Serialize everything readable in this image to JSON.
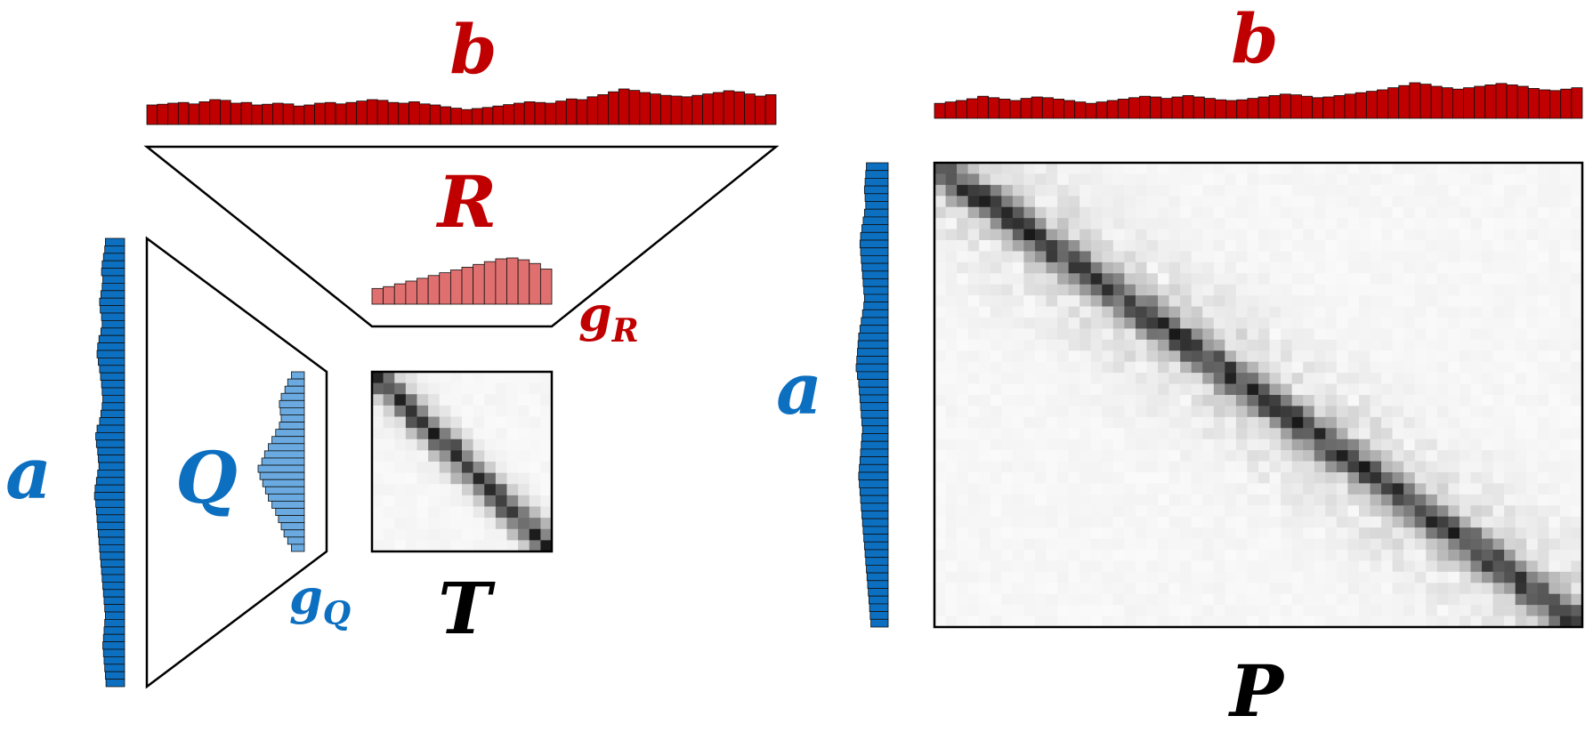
{
  "labels": {
    "a_left": "a",
    "b_top": "b",
    "R": "R",
    "gR": "g",
    "gR_sub": "R",
    "Q": "Q",
    "gQ": "g",
    "gQ_sub": "Q",
    "T": "T",
    "b_right": "b",
    "a_right": "a",
    "P": "P"
  },
  "colors": {
    "a": "#0c6fc0",
    "b": "#c00000",
    "gR": "#e07070",
    "gQ": "#6aaae0",
    "outline": "#000000",
    "matrix_dark": "#1a1a1a"
  },
  "histograms": {
    "b_left": [
      0.55,
      0.57,
      0.6,
      0.62,
      0.58,
      0.64,
      0.7,
      0.68,
      0.6,
      0.62,
      0.55,
      0.57,
      0.6,
      0.58,
      0.52,
      0.55,
      0.6,
      0.62,
      0.58,
      0.62,
      0.66,
      0.7,
      0.68,
      0.62,
      0.6,
      0.64,
      0.58,
      0.55,
      0.5,
      0.46,
      0.42,
      0.45,
      0.48,
      0.52,
      0.56,
      0.6,
      0.64,
      0.62,
      0.6,
      0.66,
      0.72,
      0.7,
      0.78,
      0.84,
      0.92,
      1.0,
      0.96,
      0.9,
      0.86,
      0.82,
      0.8,
      0.78,
      0.82,
      0.86,
      0.9,
      0.95,
      0.92,
      0.86,
      0.8,
      0.84
    ],
    "a_left": [
      0.6,
      0.62,
      0.66,
      0.7,
      0.72,
      0.68,
      0.7,
      0.74,
      0.78,
      0.76,
      0.72,
      0.7,
      0.74,
      0.8,
      0.84,
      0.86,
      0.82,
      0.78,
      0.75,
      0.72,
      0.7,
      0.68,
      0.7,
      0.74,
      0.78,
      0.86,
      0.9,
      0.88,
      0.84,
      0.82,
      0.8,
      0.84,
      0.88,
      0.92,
      0.94,
      0.9,
      0.88,
      0.86,
      0.84,
      0.82,
      0.8,
      0.78,
      0.76,
      0.74,
      0.72,
      0.7,
      0.68,
      0.66,
      0.64,
      0.62,
      0.6,
      0.62,
      0.64,
      0.66,
      0.68,
      0.66,
      0.64,
      0.62,
      0.6,
      0.58
    ],
    "gR": [
      0.34,
      0.38,
      0.44,
      0.5,
      0.56,
      0.62,
      0.68,
      0.74,
      0.8,
      0.86,
      0.92,
      0.98,
      1.0,
      0.96,
      0.88,
      0.76
    ],
    "gQ": [
      0.28,
      0.36,
      0.42,
      0.5,
      0.54,
      0.52,
      0.5,
      0.54,
      0.62,
      0.7,
      0.78,
      0.86,
      0.92,
      1.0,
      0.96,
      0.9,
      0.84,
      0.78,
      0.7,
      0.62,
      0.56,
      0.5,
      0.44,
      0.36,
      0.28
    ],
    "b_right": [
      0.42,
      0.46,
      0.5,
      0.55,
      0.62,
      0.58,
      0.54,
      0.5,
      0.56,
      0.6,
      0.58,
      0.54,
      0.5,
      0.46,
      0.42,
      0.46,
      0.5,
      0.54,
      0.58,
      0.62,
      0.6,
      0.56,
      0.6,
      0.64,
      0.6,
      0.56,
      0.52,
      0.5,
      0.52,
      0.56,
      0.6,
      0.64,
      0.68,
      0.66,
      0.62,
      0.58,
      0.6,
      0.64,
      0.68,
      0.72,
      0.76,
      0.8,
      0.86,
      0.92,
      1.0,
      0.96,
      0.9,
      0.86,
      0.82,
      0.86,
      0.9,
      0.94,
      0.98,
      0.94,
      0.9,
      0.84,
      0.8,
      0.78,
      0.82,
      0.86
    ],
    "a_right": [
      0.68,
      0.7,
      0.72,
      0.74,
      0.72,
      0.7,
      0.74,
      0.78,
      0.82,
      0.86,
      0.88,
      0.86,
      0.84,
      0.82,
      0.8,
      0.78,
      0.76,
      0.74,
      0.76,
      0.8,
      0.84,
      0.88,
      0.92,
      0.94,
      0.96,
      0.98,
      1.0,
      0.96,
      0.92,
      0.9,
      0.88,
      0.86,
      0.84,
      0.82,
      0.8,
      0.82,
      0.84,
      0.86,
      0.88,
      0.9,
      0.92,
      0.9,
      0.88,
      0.86,
      0.84,
      0.82,
      0.8,
      0.78,
      0.76,
      0.74,
      0.72,
      0.7,
      0.68,
      0.66,
      0.64,
      0.62,
      0.6,
      0.58,
      0.56,
      0.54
    ]
  },
  "matrices": {
    "T": {
      "rows": 16,
      "cols": 16,
      "bandwidth": 0.07,
      "noise": 0.28,
      "seed": 7
    },
    "P": {
      "rows": 42,
      "cols": 58,
      "bandwidth": 0.03,
      "noise": 0.22,
      "seed": 11
    }
  }
}
